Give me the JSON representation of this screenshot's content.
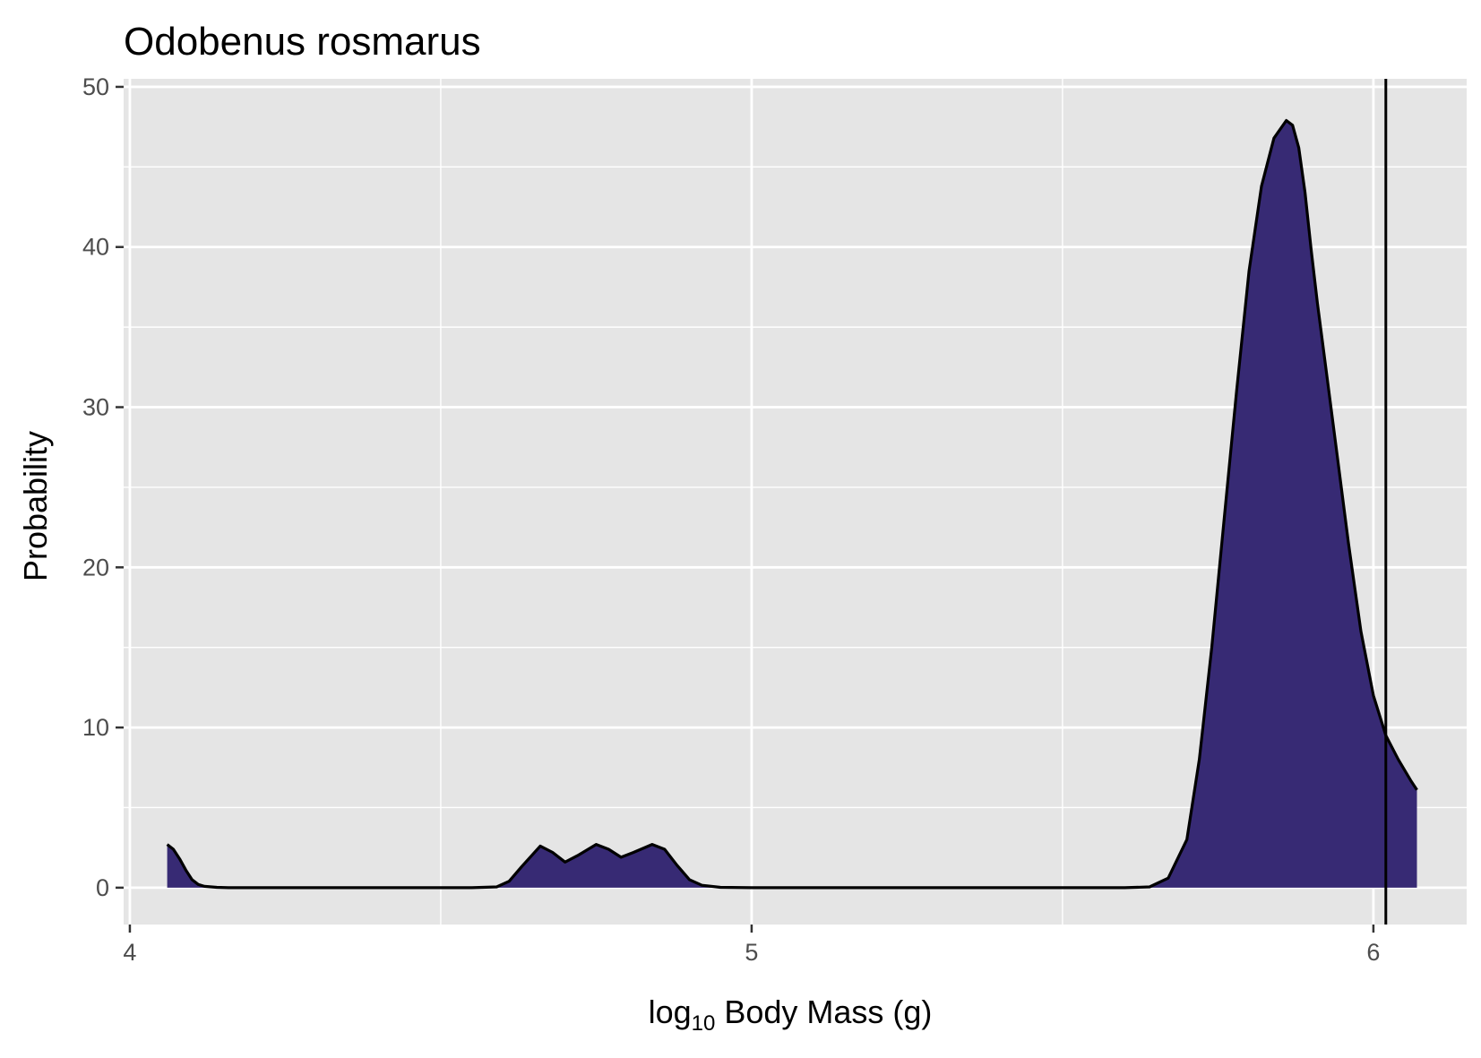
{
  "chart_data": {
    "type": "area",
    "title": "Odobenus rosmarus",
    "xlabel": {
      "prefix": "log",
      "subscript": "10",
      "suffix": " Body Mass (g)"
    },
    "ylabel": "Probability",
    "xlim": [
      3.99,
      6.15
    ],
    "ylim": [
      -2.3,
      50.5
    ],
    "x_ticks": [
      4,
      5,
      6
    ],
    "y_ticks": [
      0,
      10,
      20,
      30,
      40,
      50
    ],
    "x_tick_labels": [
      "4",
      "5",
      "6"
    ],
    "y_tick_labels": [
      "0",
      "10",
      "20",
      "30",
      "40",
      "50"
    ],
    "grid": true,
    "fill_color": "#372a74",
    "line_color": "#000000",
    "panel_color": "#e5e5e5",
    "grid_color": "#ffffff",
    "reference_line_x": 6.02,
    "density": {
      "x": [
        4.06,
        4.07,
        4.08,
        4.09,
        4.1,
        4.11,
        4.12,
        4.14,
        4.16,
        4.2,
        4.3,
        4.4,
        4.5,
        4.55,
        4.59,
        4.61,
        4.63,
        4.66,
        4.68,
        4.7,
        4.72,
        4.75,
        4.77,
        4.79,
        4.81,
        4.84,
        4.86,
        4.88,
        4.9,
        4.92,
        4.95,
        5.0,
        5.2,
        5.5,
        5.6,
        5.64,
        5.67,
        5.7,
        5.72,
        5.74,
        5.76,
        5.78,
        5.8,
        5.82,
        5.84,
        5.86,
        5.87,
        5.88,
        5.89,
        5.9,
        5.91,
        5.92,
        5.94,
        5.96,
        5.98,
        6.0,
        6.02,
        6.04,
        6.06,
        6.07
      ],
      "y": [
        2.7,
        2.4,
        1.8,
        1.1,
        0.5,
        0.2,
        0.08,
        0.02,
        0.0,
        0.0,
        0.0,
        0.0,
        0.0,
        0.0,
        0.05,
        0.4,
        1.3,
        2.6,
        2.2,
        1.6,
        2.0,
        2.7,
        2.4,
        1.9,
        2.2,
        2.7,
        2.4,
        1.4,
        0.5,
        0.15,
        0.02,
        0.0,
        0.0,
        0.0,
        0.0,
        0.05,
        0.6,
        3.0,
        8.0,
        15.0,
        23.0,
        31.0,
        38.5,
        43.8,
        46.8,
        47.9,
        47.6,
        46.2,
        43.4,
        39.8,
        36.5,
        33.5,
        27.5,
        21.5,
        16.0,
        12.0,
        9.5,
        8.0,
        6.7,
        6.1
      ]
    }
  }
}
